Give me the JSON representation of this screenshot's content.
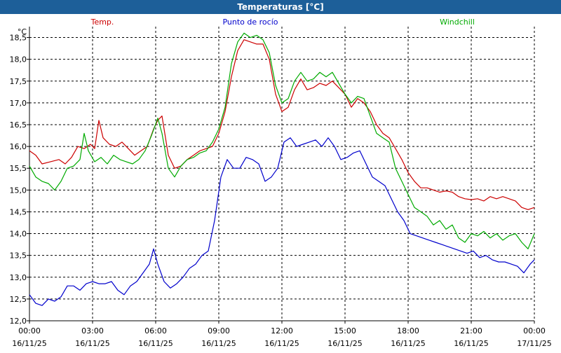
{
  "window": {
    "title": "Temperaturas [°C]"
  },
  "chart_data": {
    "type": "line",
    "title": "Temperaturas [°C]",
    "ylabel": "°C",
    "ylim": [
      12.0,
      18.75
    ],
    "yticks": [
      "12,0",
      "12,5",
      "13,0",
      "13,5",
      "14,0",
      "14,5",
      "15,0",
      "15,5",
      "16,0",
      "16,5",
      "17,0",
      "17,5",
      "18,0",
      "18,5"
    ],
    "xlim": [
      0,
      24
    ],
    "xticks": [
      {
        "time": "00:00",
        "date": "16/11/25"
      },
      {
        "time": "03:00",
        "date": "16/11/25"
      },
      {
        "time": "06:00",
        "date": "16/11/25"
      },
      {
        "time": "09:00",
        "date": "16/11/25"
      },
      {
        "time": "12:00",
        "date": "16/11/25"
      },
      {
        "time": "15:00",
        "date": "16/11/25"
      },
      {
        "time": "18:00",
        "date": "16/11/25"
      },
      {
        "time": "21:00",
        "date": "16/11/25"
      },
      {
        "time": "00:00",
        "date": "17/11/25"
      }
    ],
    "grid": true,
    "legend_placement": "top",
    "series": [
      {
        "name": "Temp.",
        "color": "#cc0000",
        "points": [
          [
            0,
            15.9
          ],
          [
            0.3,
            15.8
          ],
          [
            0.6,
            15.6
          ],
          [
            1,
            15.65
          ],
          [
            1.4,
            15.7
          ],
          [
            1.7,
            15.6
          ],
          [
            2,
            15.75
          ],
          [
            2.3,
            16.0
          ],
          [
            2.6,
            15.95
          ],
          [
            2.9,
            16.05
          ],
          [
            3.1,
            15.95
          ],
          [
            3.3,
            16.6
          ],
          [
            3.5,
            16.2
          ],
          [
            3.8,
            16.05
          ],
          [
            4.1,
            16.0
          ],
          [
            4.4,
            16.1
          ],
          [
            4.7,
            15.95
          ],
          [
            5.0,
            15.8
          ],
          [
            5.3,
            15.9
          ],
          [
            5.6,
            16.0
          ],
          [
            5.9,
            16.4
          ],
          [
            6.1,
            16.6
          ],
          [
            6.3,
            16.7
          ],
          [
            6.6,
            15.8
          ],
          [
            6.9,
            15.5
          ],
          [
            7.2,
            15.55
          ],
          [
            7.5,
            15.7
          ],
          [
            7.8,
            15.8
          ],
          [
            8.1,
            15.9
          ],
          [
            8.4,
            15.95
          ],
          [
            8.7,
            16.0
          ],
          [
            9.0,
            16.3
          ],
          [
            9.3,
            16.8
          ],
          [
            9.6,
            17.6
          ],
          [
            9.9,
            18.2
          ],
          [
            10.2,
            18.45
          ],
          [
            10.5,
            18.4
          ],
          [
            10.8,
            18.35
          ],
          [
            11.1,
            18.35
          ],
          [
            11.4,
            18.0
          ],
          [
            11.7,
            17.2
          ],
          [
            12.0,
            16.8
          ],
          [
            12.3,
            16.9
          ],
          [
            12.6,
            17.3
          ],
          [
            12.9,
            17.55
          ],
          [
            13.2,
            17.3
          ],
          [
            13.5,
            17.35
          ],
          [
            13.8,
            17.45
          ],
          [
            14.1,
            17.4
          ],
          [
            14.4,
            17.5
          ],
          [
            14.7,
            17.35
          ],
          [
            15.0,
            17.2
          ],
          [
            15.3,
            16.9
          ],
          [
            15.6,
            17.1
          ],
          [
            15.9,
            17.0
          ],
          [
            16.2,
            16.8
          ],
          [
            16.5,
            16.5
          ],
          [
            16.8,
            16.3
          ],
          [
            17.1,
            16.2
          ],
          [
            17.4,
            15.95
          ],
          [
            17.7,
            15.7
          ],
          [
            18.0,
            15.4
          ],
          [
            18.3,
            15.2
          ],
          [
            18.6,
            15.05
          ],
          [
            18.9,
            15.05
          ],
          [
            19.2,
            15.0
          ],
          [
            19.5,
            14.95
          ],
          [
            19.8,
            14.98
          ],
          [
            20.1,
            14.95
          ],
          [
            20.4,
            14.85
          ],
          [
            20.7,
            14.8
          ],
          [
            21.0,
            14.78
          ],
          [
            21.3,
            14.8
          ],
          [
            21.6,
            14.75
          ],
          [
            21.9,
            14.85
          ],
          [
            22.2,
            14.8
          ],
          [
            22.5,
            14.85
          ],
          [
            22.8,
            14.8
          ],
          [
            23.1,
            14.75
          ],
          [
            23.4,
            14.6
          ],
          [
            23.7,
            14.55
          ],
          [
            24.0,
            14.6
          ]
        ]
      },
      {
        "name": "Punto de rocío",
        "color": "#0000cc",
        "points": [
          [
            0,
            12.6
          ],
          [
            0.3,
            12.4
          ],
          [
            0.6,
            12.35
          ],
          [
            0.9,
            12.5
          ],
          [
            1.2,
            12.45
          ],
          [
            1.5,
            12.55
          ],
          [
            1.8,
            12.8
          ],
          [
            2.1,
            12.8
          ],
          [
            2.4,
            12.7
          ],
          [
            2.7,
            12.85
          ],
          [
            3.0,
            12.9
          ],
          [
            3.3,
            12.85
          ],
          [
            3.6,
            12.85
          ],
          [
            3.9,
            12.9
          ],
          [
            4.2,
            12.7
          ],
          [
            4.5,
            12.6
          ],
          [
            4.8,
            12.8
          ],
          [
            5.1,
            12.9
          ],
          [
            5.4,
            13.1
          ],
          [
            5.7,
            13.3
          ],
          [
            5.9,
            13.65
          ],
          [
            6.1,
            13.3
          ],
          [
            6.4,
            12.9
          ],
          [
            6.7,
            12.75
          ],
          [
            7.0,
            12.85
          ],
          [
            7.3,
            13.0
          ],
          [
            7.6,
            13.2
          ],
          [
            7.9,
            13.3
          ],
          [
            8.2,
            13.5
          ],
          [
            8.5,
            13.6
          ],
          [
            8.8,
            14.3
          ],
          [
            9.1,
            15.3
          ],
          [
            9.4,
            15.7
          ],
          [
            9.7,
            15.5
          ],
          [
            10.0,
            15.5
          ],
          [
            10.3,
            15.75
          ],
          [
            10.6,
            15.7
          ],
          [
            10.9,
            15.6
          ],
          [
            11.2,
            15.2
          ],
          [
            11.5,
            15.3
          ],
          [
            11.8,
            15.5
          ],
          [
            12.1,
            16.1
          ],
          [
            12.4,
            16.2
          ],
          [
            12.7,
            16.0
          ],
          [
            13.0,
            16.05
          ],
          [
            13.3,
            16.1
          ],
          [
            13.6,
            16.15
          ],
          [
            13.9,
            16.0
          ],
          [
            14.2,
            16.2
          ],
          [
            14.5,
            16.0
          ],
          [
            14.8,
            15.7
          ],
          [
            15.1,
            15.75
          ],
          [
            15.4,
            15.85
          ],
          [
            15.7,
            15.9
          ],
          [
            16.0,
            15.6
          ],
          [
            16.3,
            15.3
          ],
          [
            16.6,
            15.2
          ],
          [
            16.9,
            15.1
          ],
          [
            17.2,
            14.8
          ],
          [
            17.5,
            14.5
          ],
          [
            17.8,
            14.3
          ],
          [
            18.1,
            14.0
          ],
          [
            18.4,
            13.95
          ],
          [
            18.7,
            13.9
          ],
          [
            19.0,
            13.85
          ],
          [
            19.3,
            13.8
          ],
          [
            19.6,
            13.75
          ],
          [
            19.9,
            13.7
          ],
          [
            20.2,
            13.65
          ],
          [
            20.5,
            13.6
          ],
          [
            20.8,
            13.55
          ],
          [
            21.1,
            13.6
          ],
          [
            21.4,
            13.45
          ],
          [
            21.7,
            13.5
          ],
          [
            22.0,
            13.4
          ],
          [
            22.3,
            13.35
          ],
          [
            22.6,
            13.35
          ],
          [
            22.9,
            13.3
          ],
          [
            23.2,
            13.25
          ],
          [
            23.5,
            13.1
          ],
          [
            23.8,
            13.3
          ],
          [
            24.0,
            13.4
          ]
        ]
      },
      {
        "name": "Windchill",
        "color": "#00aa00",
        "points": [
          [
            0,
            15.55
          ],
          [
            0.3,
            15.3
          ],
          [
            0.6,
            15.2
          ],
          [
            0.9,
            15.15
          ],
          [
            1.2,
            15.0
          ],
          [
            1.5,
            15.2
          ],
          [
            1.8,
            15.5
          ],
          [
            2.1,
            15.55
          ],
          [
            2.4,
            15.7
          ],
          [
            2.6,
            16.3
          ],
          [
            2.8,
            15.9
          ],
          [
            3.1,
            15.65
          ],
          [
            3.4,
            15.75
          ],
          [
            3.7,
            15.6
          ],
          [
            4.0,
            15.8
          ],
          [
            4.3,
            15.7
          ],
          [
            4.6,
            15.65
          ],
          [
            4.9,
            15.6
          ],
          [
            5.2,
            15.7
          ],
          [
            5.5,
            15.9
          ],
          [
            5.8,
            16.25
          ],
          [
            6.1,
            16.65
          ],
          [
            6.3,
            16.3
          ],
          [
            6.6,
            15.5
          ],
          [
            6.9,
            15.3
          ],
          [
            7.2,
            15.55
          ],
          [
            7.5,
            15.7
          ],
          [
            7.8,
            15.75
          ],
          [
            8.1,
            15.85
          ],
          [
            8.4,
            15.9
          ],
          [
            8.7,
            16.1
          ],
          [
            9.0,
            16.4
          ],
          [
            9.3,
            16.9
          ],
          [
            9.6,
            17.9
          ],
          [
            9.9,
            18.4
          ],
          [
            10.2,
            18.6
          ],
          [
            10.5,
            18.5
          ],
          [
            10.8,
            18.55
          ],
          [
            11.1,
            18.45
          ],
          [
            11.4,
            18.15
          ],
          [
            11.7,
            17.4
          ],
          [
            12.0,
            17.0
          ],
          [
            12.3,
            17.1
          ],
          [
            12.6,
            17.5
          ],
          [
            12.9,
            17.7
          ],
          [
            13.2,
            17.5
          ],
          [
            13.5,
            17.55
          ],
          [
            13.8,
            17.7
          ],
          [
            14.1,
            17.6
          ],
          [
            14.4,
            17.7
          ],
          [
            14.7,
            17.45
          ],
          [
            15.0,
            17.2
          ],
          [
            15.3,
            17.0
          ],
          [
            15.6,
            17.15
          ],
          [
            15.9,
            17.1
          ],
          [
            16.2,
            16.7
          ],
          [
            16.5,
            16.3
          ],
          [
            16.8,
            16.2
          ],
          [
            17.1,
            16.1
          ],
          [
            17.4,
            15.5
          ],
          [
            17.7,
            15.2
          ],
          [
            18.0,
            14.9
          ],
          [
            18.3,
            14.6
          ],
          [
            18.6,
            14.5
          ],
          [
            18.9,
            14.4
          ],
          [
            19.2,
            14.2
          ],
          [
            19.5,
            14.3
          ],
          [
            19.8,
            14.1
          ],
          [
            20.1,
            14.2
          ],
          [
            20.4,
            13.9
          ],
          [
            20.7,
            13.8
          ],
          [
            21.0,
            14.0
          ],
          [
            21.3,
            13.95
          ],
          [
            21.6,
            14.05
          ],
          [
            21.9,
            13.9
          ],
          [
            22.2,
            14.0
          ],
          [
            22.5,
            13.85
          ],
          [
            22.8,
            13.95
          ],
          [
            23.1,
            14.0
          ],
          [
            23.4,
            13.8
          ],
          [
            23.7,
            13.65
          ],
          [
            24.0,
            14.0
          ]
        ]
      }
    ]
  }
}
